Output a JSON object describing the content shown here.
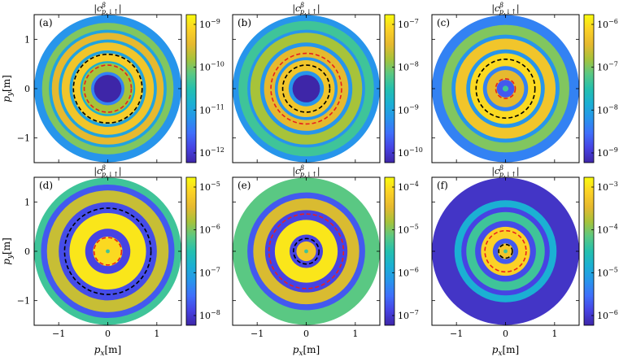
{
  "figure": {
    "x_axis_label": "p_x[m]",
    "y_axis_label": "p_y[m]",
    "colors": {
      "background_disk": "#3a2fc0",
      "ring_low": "#4a49e0",
      "ring_mid": "#23a8c9",
      "ring_high": "#f5e21a",
      "ring_green": "#7cc94a",
      "dash_red": "#e8201e",
      "dash_black": "#000000"
    },
    "colormap": [
      "#3e26a8",
      "#4743e3",
      "#3f6ffb",
      "#2795eb",
      "#1bb0d3",
      "#24c0ae",
      "#5ac883",
      "#a7c33a",
      "#e6b92f",
      "#fbd126",
      "#f9fb0e"
    ]
  },
  "chart_data": [
    {
      "type": "heatmap",
      "panel_label": "(a)",
      "title": "|c^β_{p,↓↑}|",
      "xlim": [
        -1.5,
        1.5
      ],
      "ylim": [
        -1.5,
        1.5
      ],
      "xticks": [],
      "yticks": [
        "1",
        "0",
        "-1"
      ],
      "colorbar_ticks": [
        "10^-9",
        "10^-10",
        "10^-11",
        "10^-12"
      ],
      "disk_radius": 1.5,
      "rings": [
        [
          0.0,
          0.28,
          0.0
        ],
        [
          0.28,
          0.34,
          0.25
        ],
        [
          0.34,
          0.52,
          0.7
        ],
        [
          0.52,
          0.56,
          0.4
        ],
        [
          0.56,
          0.72,
          0.88
        ],
        [
          0.72,
          0.78,
          0.35
        ],
        [
          0.78,
          0.94,
          0.85
        ],
        [
          0.94,
          1.0,
          0.35
        ],
        [
          1.0,
          1.14,
          0.8
        ],
        [
          1.14,
          1.2,
          0.35
        ],
        [
          1.2,
          1.34,
          0.65
        ],
        [
          1.34,
          1.5,
          0.3
        ]
      ],
      "dashed_circles": [
        {
          "r": 0.48,
          "color": "red"
        },
        {
          "r": 0.7,
          "color": "black"
        }
      ]
    },
    {
      "type": "heatmap",
      "panel_label": "(b)",
      "title": "|c^β_{p,↓↑}|",
      "xlim": [
        -1.5,
        1.5
      ],
      "ylim": [
        -1.5,
        1.5
      ],
      "xticks": [],
      "yticks": [],
      "colorbar_ticks": [
        "10^-7",
        "10^-8",
        "10^-9",
        "10^-10"
      ],
      "disk_radius": 1.5,
      "rings": [
        [
          0.0,
          0.28,
          0.0
        ],
        [
          0.28,
          0.36,
          0.3
        ],
        [
          0.36,
          0.58,
          0.85
        ],
        [
          0.58,
          0.64,
          0.3
        ],
        [
          0.64,
          0.86,
          0.8
        ],
        [
          0.86,
          0.94,
          0.3
        ],
        [
          0.94,
          1.14,
          0.7
        ],
        [
          1.14,
          1.2,
          0.3
        ],
        [
          1.2,
          1.38,
          0.55
        ],
        [
          1.38,
          1.5,
          0.3
        ]
      ],
      "dashed_circles": [
        {
          "r": 0.48,
          "color": "black"
        },
        {
          "r": 0.72,
          "color": "red"
        }
      ]
    },
    {
      "type": "heatmap",
      "panel_label": "(c)",
      "title": "|c^β_{p,↓↑}|",
      "xlim": [
        -1.5,
        1.5
      ],
      "ylim": [
        -1.5,
        1.5
      ],
      "xticks": [],
      "yticks": [],
      "colorbar_ticks": [
        "10^-6",
        "10^-7",
        "10^-8",
        "10^-9"
      ],
      "disk_radius": 1.5,
      "rings": [
        [
          0.0,
          0.06,
          0.55
        ],
        [
          0.06,
          0.18,
          0.15
        ],
        [
          0.18,
          0.38,
          0.8
        ],
        [
          0.38,
          0.46,
          0.25
        ],
        [
          0.46,
          0.72,
          0.92
        ],
        [
          0.72,
          0.8,
          0.3
        ],
        [
          0.8,
          1.02,
          0.85
        ],
        [
          1.02,
          1.1,
          0.3
        ],
        [
          1.1,
          1.3,
          0.65
        ],
        [
          1.3,
          1.5,
          0.25
        ]
      ],
      "dashed_circles": [
        {
          "r": 0.2,
          "color": "red"
        },
        {
          "r": 0.6,
          "color": "black"
        }
      ]
    },
    {
      "type": "heatmap",
      "panel_label": "(d)",
      "title": "|c^β_{p,↓↑}|",
      "xlim": [
        -1.5,
        1.5
      ],
      "ylim": [
        -1.5,
        1.5
      ],
      "xticks": [
        "-1",
        "0",
        "1"
      ],
      "yticks": [
        "1",
        "0",
        "-1"
      ],
      "colorbar_ticks": [
        "10^-5",
        "10^-6",
        "10^-7",
        "10^-8"
      ],
      "disk_radius": 1.5,
      "rings": [
        [
          0.0,
          0.04,
          0.55
        ],
        [
          0.04,
          0.3,
          0.92
        ],
        [
          0.3,
          0.46,
          0.1
        ],
        [
          0.46,
          0.78,
          0.95
        ],
        [
          0.78,
          1.0,
          0.12
        ],
        [
          1.0,
          1.24,
          0.75
        ],
        [
          1.24,
          1.36,
          0.15
        ],
        [
          1.36,
          1.5,
          0.55
        ]
      ],
      "dashed_circles": [
        {
          "r": 0.28,
          "color": "red"
        },
        {
          "r": 0.88,
          "color": "black"
        }
      ]
    },
    {
      "type": "heatmap",
      "panel_label": "(e)",
      "title": "|c^β_{p,↓↑}|",
      "xlim": [
        -1.5,
        1.5
      ],
      "ylim": [
        -1.5,
        1.5
      ],
      "xticks": [
        "-1",
        "0",
        "1"
      ],
      "yticks": [],
      "colorbar_ticks": [
        "10^-4",
        "10^-5",
        "10^-6",
        "10^-7"
      ],
      "disk_radius": 1.5,
      "rings": [
        [
          0.0,
          0.04,
          0.55
        ],
        [
          0.04,
          0.2,
          0.85
        ],
        [
          0.2,
          0.34,
          0.1
        ],
        [
          0.34,
          0.64,
          0.95
        ],
        [
          0.64,
          0.84,
          0.1
        ],
        [
          0.84,
          1.08,
          0.78
        ],
        [
          1.08,
          1.2,
          0.15
        ],
        [
          1.2,
          1.5,
          0.6
        ]
      ],
      "dashed_circles": [
        {
          "r": 0.26,
          "color": "black"
        },
        {
          "r": 0.76,
          "color": "red"
        }
      ]
    },
    {
      "type": "heatmap",
      "panel_label": "(f)",
      "title": "|c^β_{p,↓↑}|",
      "xlim": [
        -1.5,
        1.5
      ],
      "ylim": [
        -1.5,
        1.5
      ],
      "xticks": [
        "-1",
        "0",
        "1"
      ],
      "yticks": [],
      "colorbar_ticks": [
        "10^-3",
        "10^-4",
        "10^-5",
        "10^-6"
      ],
      "disk_radius": 1.5,
      "rings": [
        [
          0.0,
          0.04,
          0.55
        ],
        [
          0.04,
          0.16,
          0.85
        ],
        [
          0.16,
          0.26,
          0.15
        ],
        [
          0.26,
          0.5,
          0.9
        ],
        [
          0.5,
          0.62,
          0.12
        ],
        [
          0.62,
          0.8,
          0.55
        ],
        [
          0.8,
          0.9,
          0.1
        ],
        [
          0.9,
          1.04,
          0.4
        ],
        [
          1.04,
          1.5,
          0.05
        ]
      ],
      "dashed_circles": [
        {
          "r": 0.14,
          "color": "black"
        },
        {
          "r": 0.42,
          "color": "red"
        }
      ]
    }
  ]
}
